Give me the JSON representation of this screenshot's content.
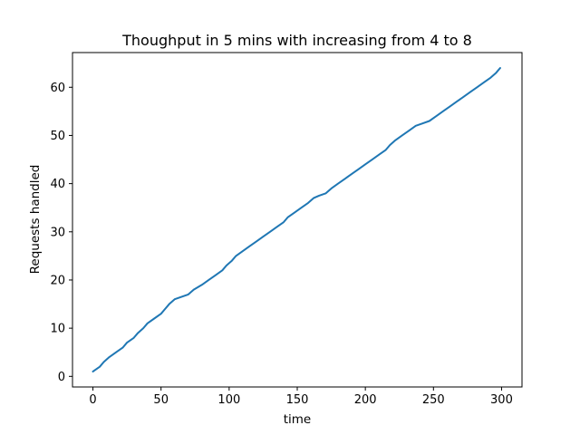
{
  "chart_data": {
    "type": "line",
    "title": "Thoughput in 5 mins with increasing from 4 to 8",
    "xlabel": "time",
    "ylabel": "Requests handled",
    "xlim": [
      -15,
      315
    ],
    "ylim": [
      -2.2,
      67.2
    ],
    "xticks": [
      0,
      50,
      100,
      150,
      200,
      250,
      300
    ],
    "yticks": [
      0,
      10,
      20,
      30,
      40,
      50,
      60
    ],
    "grid": false,
    "series": [
      {
        "color": "#1f77b4",
        "x": [
          0,
          5,
          8,
          12,
          17,
          22,
          25,
          30,
          33,
          37,
          40,
          45,
          50,
          53,
          56,
          60,
          65,
          70,
          74,
          80,
          85,
          90,
          95,
          98,
          102,
          105,
          110,
          115,
          120,
          125,
          130,
          135,
          140,
          143,
          148,
          153,
          158,
          162,
          166,
          171,
          175,
          180,
          185,
          190,
          195,
          200,
          205,
          210,
          215,
          218,
          222,
          227,
          232,
          237,
          242,
          247,
          252,
          257,
          262,
          267,
          272,
          277,
          282,
          287,
          292,
          296,
          299
        ],
        "y": [
          1,
          2,
          3,
          4,
          5,
          6,
          7,
          8,
          9,
          10,
          11,
          12,
          13,
          14,
          15,
          16,
          16.5,
          17,
          18,
          19,
          20,
          21,
          22,
          23,
          24,
          25,
          26,
          27,
          28,
          29,
          30,
          31,
          32,
          33,
          34,
          35,
          36,
          37,
          37.5,
          38,
          39,
          40,
          41,
          42,
          43,
          44,
          45,
          46,
          47,
          48,
          49,
          50,
          51,
          52,
          52.5,
          53,
          54,
          55,
          56,
          57,
          58,
          59,
          60,
          61,
          62,
          63,
          64
        ]
      }
    ]
  }
}
